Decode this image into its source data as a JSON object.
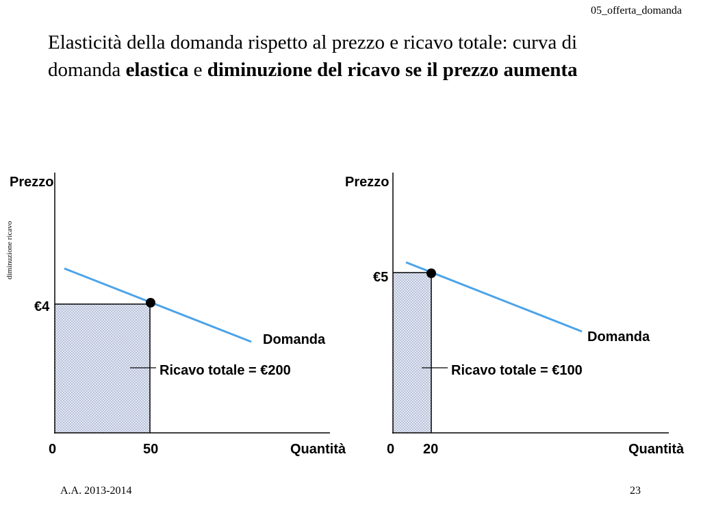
{
  "header": {
    "file_tag": "05_offerta_domanda"
  },
  "title": {
    "line1": "Elasticità della domanda rispetto al prezzo e ricavo totale: curva di",
    "line2_pre": "domanda ",
    "line2_bold1": "elastica",
    "line2_mid": " e ",
    "line2_bold2": "diminuzione del ricavo se il prezzo aumenta"
  },
  "side_note": "diminuzione ricavo",
  "colors": {
    "demand_line": "#4BA3E8",
    "axis": "#000000",
    "area_fill": "#E3E8F4",
    "area_dots": "#7A8AAE"
  },
  "left_graph": {
    "y_axis_label": "Prezzo",
    "x_axis_label": "Quantità",
    "origin_label": "0",
    "price_label": "€4",
    "quantity_label": "50",
    "curve_label": "Domanda",
    "revenue_label": "Ricavo totale = €200",
    "price": 4,
    "quantity": 50,
    "total_revenue": 200
  },
  "right_graph": {
    "y_axis_label": "Prezzo",
    "x_axis_label": "Quantità",
    "origin_label": "0",
    "price_label": "€5",
    "quantity_label": "20",
    "curve_label": "Domanda",
    "revenue_label": "Ricavo totale = €100",
    "price": 5,
    "quantity": 20,
    "total_revenue": 100
  },
  "footer": {
    "academic_year": "A.A. 2013-2014",
    "page_number": "23"
  }
}
